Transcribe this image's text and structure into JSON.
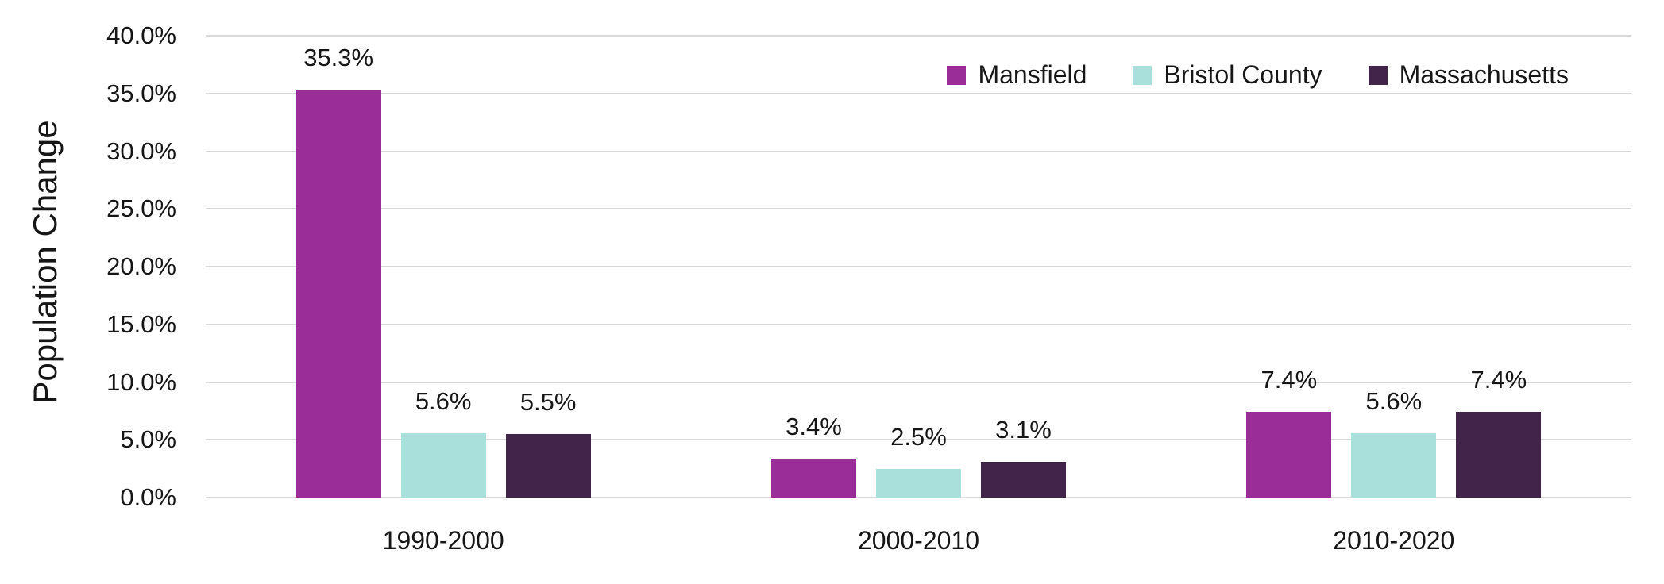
{
  "chart_data": {
    "type": "bar",
    "title": "",
    "xlabel": "",
    "ylabel": "Population Change",
    "categories": [
      "1990-2000",
      "2000-2010",
      "2010-2020"
    ],
    "series": [
      {
        "name": "Mansfield",
        "color": "#9A2D97",
        "values": [
          35.3,
          3.4,
          7.4
        ],
        "value_labels": [
          "35.3%",
          "3.4%",
          "7.4%"
        ]
      },
      {
        "name": "Bristol County",
        "color": "#A9E0DB",
        "values": [
          5.6,
          2.5,
          5.6
        ],
        "value_labels": [
          "5.6%",
          "2.5%",
          "5.6%"
        ]
      },
      {
        "name": "Massachusetts",
        "color": "#422349",
        "values": [
          5.5,
          3.1,
          7.4
        ],
        "value_labels": [
          "5.5%",
          "3.1%",
          "7.4%"
        ]
      }
    ],
    "ylim": [
      0,
      40
    ],
    "ytick_step": 5,
    "ytick_labels": [
      "0.0%",
      "5.0%",
      "10.0%",
      "15.0%",
      "20.0%",
      "25.0%",
      "30.0%",
      "35.0%",
      "40.0%"
    ],
    "grid": true,
    "legend_position": "top-right"
  },
  "colors": {
    "background": "#FFFFFF",
    "gridline": "#D8D8D8",
    "text": "#161616"
  }
}
